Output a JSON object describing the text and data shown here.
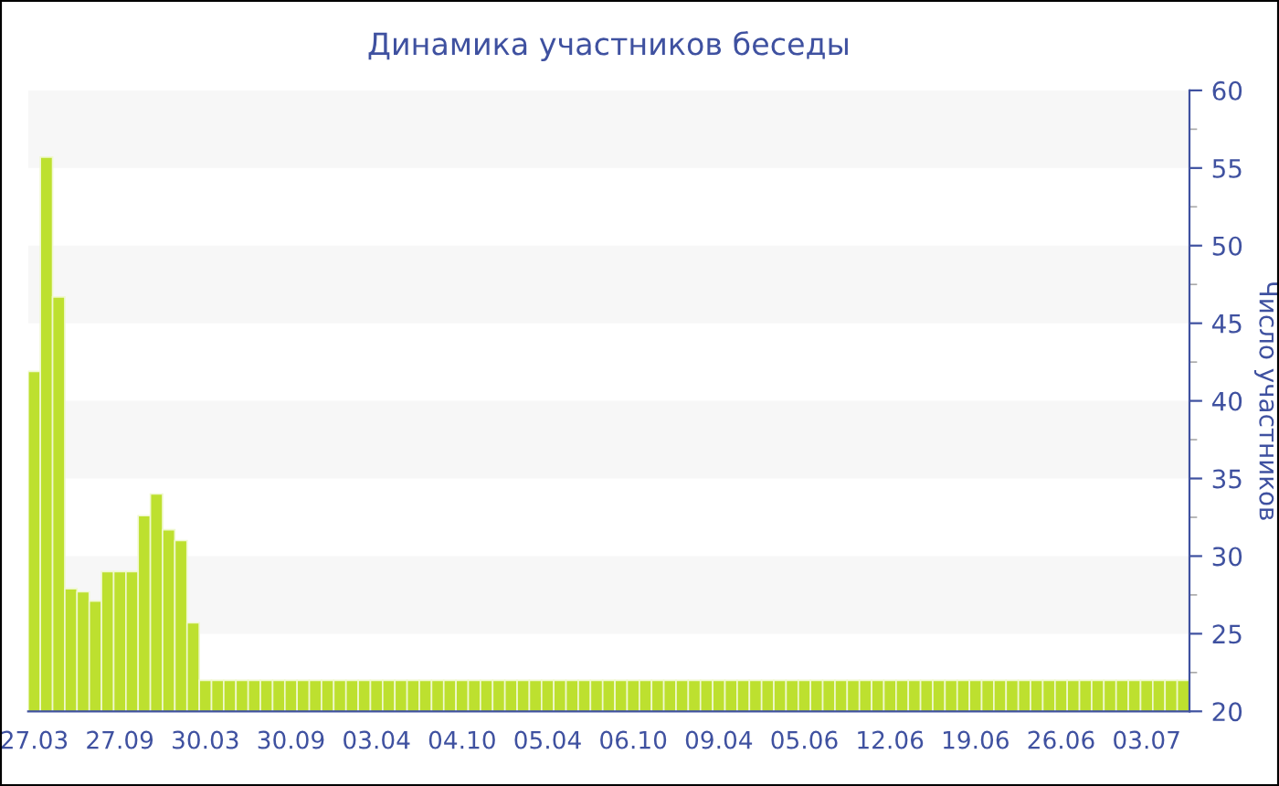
{
  "chart_data": {
    "type": "bar",
    "title": "Динамика участников беседы",
    "ylabel": "Число участников",
    "categories": [
      "27.03",
      null,
      null,
      null,
      null,
      null,
      null,
      "27.09",
      null,
      null,
      null,
      null,
      null,
      null,
      "30.03",
      null,
      null,
      null,
      null,
      null,
      null,
      "30.09",
      null,
      null,
      null,
      null,
      null,
      null,
      "03.04",
      null,
      null,
      null,
      null,
      null,
      null,
      "04.10",
      null,
      null,
      null,
      null,
      null,
      null,
      "05.04",
      null,
      null,
      null,
      null,
      null,
      null,
      "06.10",
      null,
      null,
      null,
      null,
      null,
      null,
      "09.04",
      null,
      null,
      null,
      null,
      null,
      null,
      "05.06",
      null,
      null,
      null,
      null,
      null,
      null,
      "12.06",
      null,
      null,
      null,
      null,
      null,
      null,
      "19.06",
      null,
      null,
      null,
      null,
      null,
      null,
      "26.06",
      null,
      null,
      null,
      null,
      null,
      null,
      "03.07",
      null,
      null,
      null
    ],
    "values": [
      41.9,
      55.7,
      46.7,
      27.9,
      27.7,
      27.1,
      29.0,
      29.0,
      29.0,
      32.6,
      34.0,
      31.7,
      31.0,
      25.7,
      22,
      22,
      22,
      22,
      22,
      22,
      22,
      22,
      22,
      22,
      22,
      22,
      22,
      22,
      22,
      22,
      22,
      22,
      22,
      22,
      22,
      22,
      22,
      22,
      22,
      22,
      22,
      22,
      22,
      22,
      22,
      22,
      22,
      22,
      22,
      22,
      22,
      22,
      22,
      22,
      22,
      22,
      22,
      22,
      22,
      22,
      22,
      22,
      22,
      22,
      22,
      22,
      22,
      22,
      22,
      22,
      22,
      22,
      22,
      22,
      22,
      22,
      22,
      22,
      22,
      22,
      22,
      22,
      22,
      22,
      22,
      22,
      22,
      22,
      22,
      22,
      22,
      22,
      22,
      22,
      22
    ],
    "color": "#bde02f",
    "ylim": [
      20,
      60
    ],
    "yticks": [
      20,
      25,
      30,
      35,
      40,
      45,
      50,
      55,
      60
    ],
    "bands": [
      {
        "axis": "y",
        "from": 25,
        "to": 30,
        "color": "#f7f7f7"
      },
      {
        "axis": "y",
        "from": 35,
        "to": 40,
        "color": "#f7f7f7"
      },
      {
        "axis": "y",
        "from": 45,
        "to": 50,
        "color": "#f7f7f7"
      },
      {
        "axis": "y",
        "from": 55,
        "to": 60,
        "color": "#f7f7f7"
      }
    ],
    "grid": false,
    "legend": false
  }
}
